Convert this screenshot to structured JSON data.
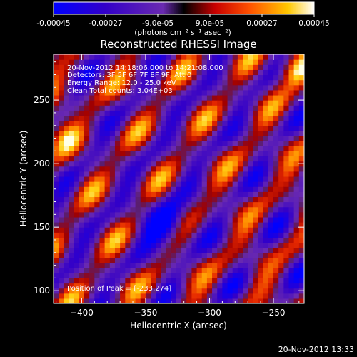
{
  "colorbar": {
    "tick_labels": [
      "-0.00045",
      "-0.00027",
      "-9.0e-05",
      "9.0e-05",
      "0.00027",
      "0.00045"
    ],
    "tick_values": [
      -0.00045,
      -0.00027,
      -9e-05,
      9e-05,
      0.00027,
      0.00045
    ],
    "range": [
      -0.00045,
      0.00045
    ],
    "units_text": "(photons cm⁻² s⁻¹ asec⁻²)",
    "colors": [
      "#0000ff",
      "#3300c8",
      "#6a2ab0",
      "#000000",
      "#c80000",
      "#ff5000",
      "#ffc800",
      "#ffffff"
    ]
  },
  "chart_data": {
    "type": "heatmap",
    "title": "Reconstructed RHESSI Image",
    "xlabel": "Heliocentric X (arcsec)",
    "ylabel": "Heliocentric Y (arcsec)",
    "xlim": [
      -422,
      -226
    ],
    "ylim": [
      90,
      286
    ],
    "x_ticks": [
      -400,
      -350,
      -300,
      -250
    ],
    "y_ticks": [
      100,
      150,
      200,
      250
    ],
    "x_tick_labels": [
      "−400",
      "−350",
      "−300",
      "−250"
    ],
    "y_tick_labels": [
      "100",
      "150",
      "200",
      "250"
    ],
    "value_range": [
      -0.00045,
      0.00045
    ],
    "peak_position": [
      -233,
      274
    ],
    "annotations": [
      "20-Nov-2012 14:18:06.000 to 14:21:08.000",
      "Detectors: 3F 5F 6F 7F 8F 9F, Att 0",
      "Energy Range: 12.0 - 25.0 keV",
      "Clean    Total counts: 3.04E+03"
    ],
    "peak_text": "Position of Peak = [-233,274]",
    "image_description": "Diagonal stripe pattern of alternating positive (red/yellow) and negative (blue/purple) flux, typical of a clean image of low counts"
  },
  "footer": {
    "timestamp": "20-Nov-2012 13:33"
  }
}
